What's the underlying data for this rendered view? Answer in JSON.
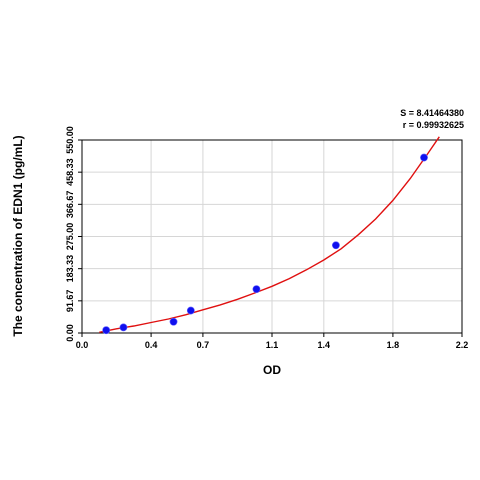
{
  "chart_data": {
    "type": "scatter",
    "title": "",
    "xlabel": "OD",
    "ylabel": "The concentration of EDN1 (pg/mL)",
    "xlim": [
      0,
      2.2
    ],
    "ylim": [
      0,
      550
    ],
    "x_ticks": [
      0.0,
      0.4,
      0.7,
      1.1,
      1.4,
      1.8,
      2.2
    ],
    "x_tick_labels": [
      "0.0",
      "0.4",
      "0.7",
      "1.1",
      "1.4",
      "1.8",
      "2.2"
    ],
    "y_ticks": [
      0,
      91.67,
      183.33,
      275,
      366.67,
      458.33,
      550
    ],
    "y_tick_labels": [
      "0.00",
      "91.67",
      "183.33",
      "275.00",
      "366.67",
      "458.33",
      "550.00"
    ],
    "grid": true,
    "series": [
      {
        "type": "scatter",
        "color": "#1010ee",
        "x": [
          0.14,
          0.24,
          0.53,
          0.63,
          1.01,
          1.47,
          1.98
        ],
        "y": [
          8,
          16,
          32,
          64,
          125,
          250,
          500
        ]
      },
      {
        "type": "line",
        "color": "#e01010",
        "x": [
          0.1,
          0.2,
          0.3,
          0.4,
          0.5,
          0.6,
          0.7,
          0.8,
          0.9,
          1.0,
          1.1,
          1.2,
          1.3,
          1.4,
          1.5,
          1.6,
          1.7,
          1.8,
          1.9,
          2.0,
          2.07
        ],
        "y": [
          2,
          12,
          20,
          30,
          40,
          52,
          66,
          80,
          96,
          114,
          133,
          155,
          180,
          208,
          240,
          280,
          325,
          378,
          440,
          510,
          560
        ]
      }
    ],
    "stats": {
      "s_text": "S = 8.41464380",
      "r_text": "r = 0.99932625"
    }
  }
}
